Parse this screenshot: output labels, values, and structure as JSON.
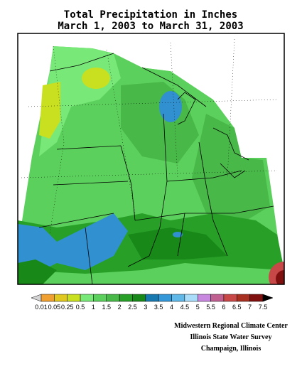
{
  "header": {
    "title": "Total Precipitation in Inches",
    "subtitle": "March 1, 2003 to March 31, 2003"
  },
  "legend": {
    "labels": [
      "0.01",
      "0.05",
      "0.25",
      "0.5",
      "1",
      "1.5",
      "2",
      "2.5",
      "3",
      "3.5",
      "4",
      "4.5",
      "5",
      "5.5",
      "6",
      "6.5",
      "7",
      "7.5"
    ],
    "colors": [
      "#d4d4d4",
      "#f0a030",
      "#e0c820",
      "#c8e020",
      "#78e878",
      "#5cd05c",
      "#48b848",
      "#28a028",
      "#188818",
      "#1878b0",
      "#3498d8",
      "#60b8e8",
      "#a8dcf8",
      "#c888e0",
      "#c06090",
      "#c84848",
      "#a83020",
      "#801010",
      "#000000"
    ]
  },
  "credits": [
    "Midwestern Regional Climate Center",
    "Illinois State Water Survey",
    "Champaign, Illinois"
  ]
}
